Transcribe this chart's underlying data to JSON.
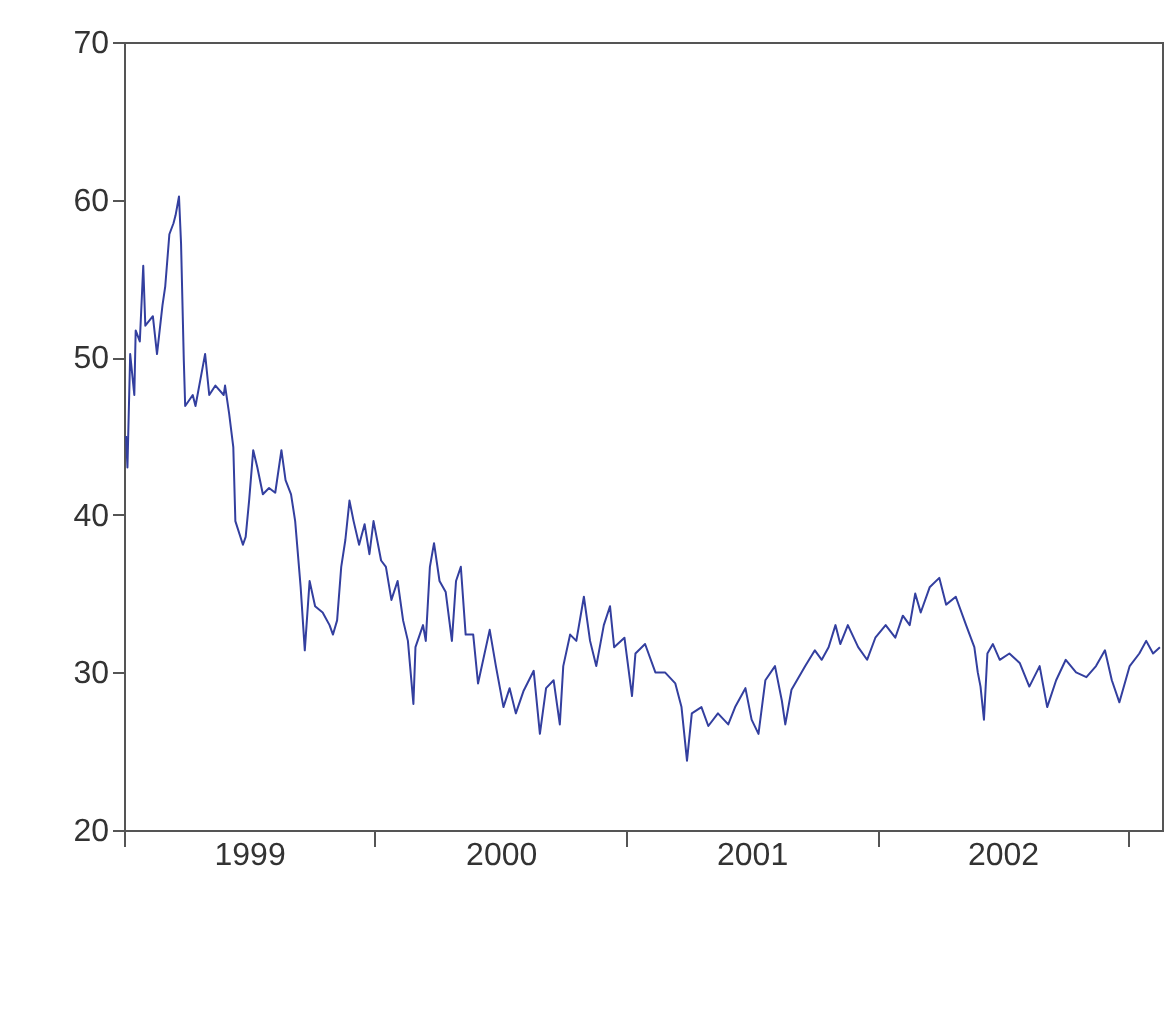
{
  "chart_data": {
    "type": "line",
    "x": [
      "1999-01-04",
      "1999-01-06",
      "1999-01-10",
      "1999-01-16",
      "1999-01-18",
      "1999-01-24",
      "1999-01-29",
      "1999-02-01",
      "1999-02-12",
      "1999-02-18",
      "1999-02-26",
      "1999-03-02",
      "1999-03-08",
      "1999-03-14",
      "1999-03-17",
      "1999-03-22",
      "1999-03-25",
      "1999-03-29",
      "1999-03-31",
      "1999-04-11",
      "1999-04-15",
      "1999-04-26",
      "1999-04-29",
      "1999-05-05",
      "1999-05-14",
      "1999-05-26",
      "1999-05-28",
      "1999-06-03",
      "1999-06-09",
      "1999-06-12",
      "1999-06-23",
      "1999-06-27",
      "1999-07-02",
      "1999-07-08",
      "1999-07-14",
      "1999-07-22",
      "1999-07-31",
      "1999-08-09",
      "1999-08-18",
      "1999-08-24",
      "1999-09-01",
      "1999-09-07",
      "1999-09-15",
      "1999-09-21",
      "1999-09-28",
      "1999-10-06",
      "1999-10-17",
      "1999-10-27",
      "1999-11-01",
      "1999-11-07",
      "1999-11-13",
      "1999-11-19",
      "1999-11-25",
      "1999-12-01",
      "1999-12-09",
      "1999-12-17",
      "1999-12-24",
      "1999-12-30",
      "2000-01-10",
      "2000-01-17",
      "2000-01-25",
      "2000-02-03",
      "2000-02-11",
      "2000-02-18",
      "2000-02-26",
      "2000-02-29",
      "2000-03-11",
      "2000-03-15",
      "2000-03-21",
      "2000-03-27",
      "2000-04-04",
      "2000-04-13",
      "2000-04-22",
      "2000-04-28",
      "2000-05-05",
      "2000-05-12",
      "2000-05-23",
      "2000-05-30",
      "2000-06-16",
      "2000-06-25",
      "2000-07-06",
      "2000-07-15",
      "2000-07-24",
      "2000-08-04",
      "2000-08-19",
      "2000-08-28",
      "2000-09-06",
      "2000-09-17",
      "2000-09-26",
      "2000-10-01",
      "2000-10-11",
      "2000-10-20",
      "2000-10-31",
      "2000-11-09",
      "2000-11-18",
      "2000-11-29",
      "2000-12-08",
      "2000-12-14",
      "2000-12-29",
      "2001-01-09",
      "2001-01-14",
      "2001-01-28",
      "2001-02-12",
      "2001-02-26",
      "2001-03-13",
      "2001-03-22",
      "2001-03-30",
      "2001-04-06",
      "2001-04-20",
      "2001-04-30",
      "2001-05-14",
      "2001-05-29",
      "2001-06-08",
      "2001-06-23",
      "2001-07-02",
      "2001-07-12",
      "2001-07-22",
      "2001-08-05",
      "2001-08-15",
      "2001-08-20",
      "2001-08-29",
      "2001-09-18",
      "2001-10-02",
      "2001-10-12",
      "2001-10-22",
      "2001-11-01",
      "2001-11-08",
      "2001-11-19",
      "2001-12-04",
      "2001-12-17",
      "2001-12-29",
      "2002-01-13",
      "2002-01-27",
      "2002-02-07",
      "2002-02-17",
      "2002-02-25",
      "2002-03-05",
      "2002-03-18",
      "2002-04-01",
      "2002-04-11",
      "2002-04-25",
      "2002-05-10",
      "2002-05-22",
      "2002-05-27",
      "2002-05-31",
      "2002-06-05",
      "2002-06-10",
      "2002-06-18",
      "2002-06-28",
      "2002-07-12",
      "2002-07-27",
      "2002-08-10",
      "2002-08-25",
      "2002-09-05",
      "2002-09-18",
      "2002-10-02",
      "2002-10-17",
      "2002-11-01",
      "2002-11-15",
      "2002-11-28",
      "2002-12-08",
      "2002-12-19",
      "2003-01-03",
      "2003-01-17",
      "2003-01-27",
      "2003-02-06",
      "2003-02-16"
    ],
    "series": [
      {
        "color": "#333f9f",
        "values": [
          45,
          43,
          50.2,
          47.6,
          51.7,
          51,
          55.8,
          52,
          52.6,
          50.2,
          53.3,
          54.5,
          57.8,
          58.5,
          59,
          60.2,
          57.2,
          49.8,
          46.9,
          47.6,
          46.9,
          49.5,
          50.2,
          47.6,
          48.2,
          47.6,
          48.2,
          46.4,
          44.3,
          39.6,
          38.1,
          38.6,
          40.9,
          44.1,
          43,
          41.3,
          41.7,
          41.4,
          44.1,
          42.2,
          41.3,
          39.6,
          35.4,
          31.4,
          35.8,
          34.2,
          33.8,
          33,
          32.4,
          33.3,
          36.7,
          38.4,
          40.9,
          39.6,
          38.1,
          39.4,
          37.5,
          39.6,
          37.1,
          36.7,
          34.6,
          35.8,
          33.3,
          32,
          28,
          31.6,
          33,
          32,
          36.7,
          38.2,
          35.8,
          35.1,
          32,
          35.8,
          36.7,
          32.4,
          32.4,
          29.3,
          32.7,
          30.4,
          27.8,
          29,
          27.4,
          28.8,
          30.1,
          26.1,
          29,
          29.5,
          26.7,
          30.4,
          32.4,
          32,
          34.8,
          32,
          30.4,
          33,
          34.2,
          31.6,
          32.2,
          28.5,
          31.2,
          31.8,
          30,
          30,
          29.3,
          27.8,
          24.4,
          27.4,
          27.8,
          26.6,
          27.4,
          26.7,
          27.8,
          29,
          27,
          26.1,
          29.5,
          30.4,
          28.2,
          26.7,
          28.9,
          30.4,
          31.4,
          30.8,
          31.6,
          33,
          31.8,
          33,
          31.6,
          30.8,
          32.2,
          33,
          32.2,
          33.6,
          33,
          35,
          33.8,
          35.4,
          36,
          34.3,
          34.8,
          33,
          31.6,
          30,
          29.1,
          27,
          31.2,
          31.8,
          30.8,
          31.2,
          30.6,
          29.1,
          30.4,
          27.8,
          29.5,
          30.8,
          30,
          29.7,
          30.4,
          31.4,
          29.5,
          28.1,
          30.4,
          31.2,
          32,
          31.2,
          31.6
        ]
      }
    ],
    "xlim": [
      "1999-01-01",
      "2003-02-19"
    ],
    "xticks": [
      {
        "value": "1999-01-01",
        "label": null
      },
      {
        "value": "1999-07-02",
        "label": "1999"
      },
      {
        "value": "2000-01-01",
        "label": null
      },
      {
        "value": "2000-07-02",
        "label": "2000"
      },
      {
        "value": "2001-01-01",
        "label": null
      },
      {
        "value": "2001-07-02",
        "label": "2001"
      },
      {
        "value": "2002-01-01",
        "label": null
      },
      {
        "value": "2002-07-02",
        "label": "2002"
      },
      {
        "value": "2003-01-01",
        "label": null
      }
    ],
    "ylim": [
      20,
      70
    ],
    "yticks": [
      20,
      30,
      40,
      50,
      60,
      70
    ],
    "grid": false,
    "line_style": "solid",
    "marker": "none"
  }
}
